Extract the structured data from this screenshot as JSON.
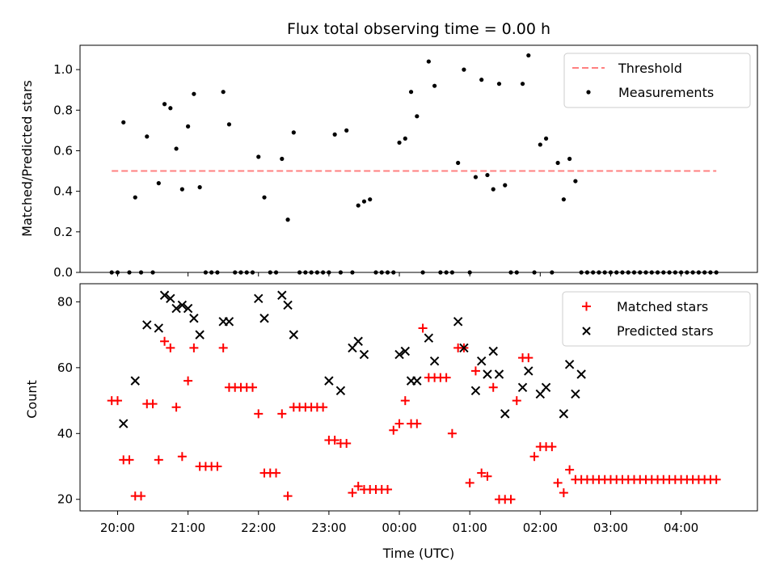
{
  "chart_data": [
    {
      "type": "scatter",
      "title": "Flux total observing time = 0.00 h",
      "xlabel": "",
      "ylabel": "Matched/Predicted stars",
      "ylim": [
        0,
        1.12
      ],
      "xlim": [
        "19:28",
        "05:05"
      ],
      "yticks": [
        "0.0",
        "0.2",
        "0.4",
        "0.6",
        "0.8",
        "1.0"
      ],
      "grid": false,
      "legend": {
        "placement": "top-right",
        "entries": [
          "Threshold",
          "Measurements"
        ]
      },
      "threshold": {
        "name": "Threshold",
        "y": 0.5,
        "x_start": "19:55",
        "x_end": "04:30",
        "color": "#ff8080",
        "style": "dashed"
      },
      "series": [
        {
          "name": "Measurements",
          "color": "#000000",
          "marker": "dot",
          "x": [
            "19:55",
            "20:00",
            "20:05",
            "20:10",
            "20:15",
            "20:20",
            "20:25",
            "20:30",
            "20:35",
            "20:40",
            "20:45",
            "20:50",
            "20:55",
            "21:00",
            "21:05",
            "21:10",
            "21:15",
            "21:20",
            "21:25",
            "21:30",
            "21:35",
            "21:40",
            "21:45",
            "21:50",
            "21:55",
            "22:00",
            "22:05",
            "22:10",
            "22:15",
            "22:20",
            "22:25",
            "22:30",
            "22:35",
            "22:40",
            "22:45",
            "22:50",
            "22:55",
            "23:00",
            "23:05",
            "23:10",
            "23:15",
            "23:20",
            "23:25",
            "23:30",
            "23:35",
            "23:40",
            "23:45",
            "23:50",
            "23:55",
            "00:00",
            "00:05",
            "00:10",
            "00:15",
            "00:20",
            "00:25",
            "00:30",
            "00:35",
            "00:40",
            "00:45",
            "00:50",
            "00:55",
            "01:00",
            "01:05",
            "01:10",
            "01:15",
            "01:20",
            "01:25",
            "01:30",
            "01:35",
            "01:40",
            "01:45",
            "01:50",
            "01:55",
            "02:00",
            "02:05",
            "02:10",
            "02:15",
            "02:20",
            "02:25",
            "02:30",
            "02:35",
            "02:40",
            "02:45",
            "02:50",
            "02:55",
            "03:00",
            "03:05",
            "03:10",
            "03:15",
            "03:20",
            "03:25",
            "03:30",
            "03:35",
            "03:40",
            "03:45",
            "03:50",
            "03:55",
            "04:00",
            "04:05",
            "04:10",
            "04:15",
            "04:20",
            "04:25",
            "04:30"
          ],
          "y": [
            0,
            0,
            0.74,
            0,
            0.37,
            0,
            0.67,
            0,
            0.44,
            0.83,
            0.81,
            0.61,
            0.41,
            0.72,
            0.88,
            0.42,
            0,
            0,
            0,
            0.89,
            0.73,
            0,
            0,
            0,
            0,
            0.57,
            0.37,
            0,
            0,
            0.56,
            0.26,
            0.69,
            0,
            0,
            0,
            0,
            0,
            0,
            0.68,
            0,
            0.7,
            0,
            0.33,
            0.35,
            0.36,
            0,
            0,
            0,
            0,
            0.64,
            0.66,
            0.89,
            0.77,
            0,
            1.04,
            0.92,
            0,
            0,
            0,
            0.54,
            1.0,
            0,
            0.47,
            0.95,
            0.48,
            0.41,
            0.93,
            0.43,
            0,
            0,
            0.93,
            1.07,
            0,
            0.63,
            0.66,
            0,
            0.54,
            0.36,
            0.56,
            0.45,
            0,
            0,
            0,
            0,
            0,
            0,
            0,
            0,
            0,
            0,
            0,
            0,
            0,
            0,
            0,
            0,
            0,
            0,
            0,
            0,
            0,
            0,
            0,
            0
          ]
        }
      ]
    },
    {
      "type": "scatter",
      "title": "",
      "xlabel": "Time (UTC)",
      "ylabel": "Count",
      "ylim": [
        16.5,
        85.5
      ],
      "xlim": [
        "19:28",
        "05:05"
      ],
      "yticks": [
        "20",
        "40",
        "60",
        "80"
      ],
      "xticks": [
        "20:00",
        "21:00",
        "22:00",
        "23:00",
        "00:00",
        "01:00",
        "02:00",
        "03:00",
        "04:00"
      ],
      "grid": false,
      "legend": {
        "placement": "top-right",
        "entries": [
          "Matched stars",
          "Predicted stars"
        ]
      },
      "series": [
        {
          "name": "Matched stars",
          "color": "#ff0000",
          "marker": "plus",
          "x": [
            "19:55",
            "20:00",
            "20:05",
            "20:10",
            "20:15",
            "20:20",
            "20:25",
            "20:30",
            "20:35",
            "20:40",
            "20:45",
            "20:50",
            "20:55",
            "21:00",
            "21:05",
            "21:10",
            "21:15",
            "21:20",
            "21:25",
            "21:30",
            "21:35",
            "21:40",
            "21:45",
            "21:50",
            "21:55",
            "22:00",
            "22:05",
            "22:10",
            "22:15",
            "22:20",
            "22:25",
            "22:30",
            "22:35",
            "22:40",
            "22:45",
            "22:50",
            "22:55",
            "23:00",
            "23:05",
            "23:10",
            "23:15",
            "23:20",
            "23:25",
            "23:30",
            "23:35",
            "23:40",
            "23:45",
            "23:50",
            "23:55",
            "00:00",
            "00:05",
            "00:10",
            "00:15",
            "00:20",
            "00:25",
            "00:30",
            "00:35",
            "00:40",
            "00:45",
            "00:50",
            "00:55",
            "01:00",
            "01:05",
            "01:10",
            "01:15",
            "01:20",
            "01:25",
            "01:30",
            "01:35",
            "01:40",
            "01:45",
            "01:50",
            "01:55",
            "02:00",
            "02:05",
            "02:10",
            "02:15",
            "02:20",
            "02:25",
            "02:30",
            "02:35",
            "02:40",
            "02:45",
            "02:50",
            "02:55",
            "03:00",
            "03:05",
            "03:10",
            "03:15",
            "03:20",
            "03:25",
            "03:30",
            "03:35",
            "03:40",
            "03:45",
            "03:50",
            "03:55",
            "04:00",
            "04:05",
            "04:10",
            "04:15",
            "04:20",
            "04:25",
            "04:30"
          ],
          "y": [
            50,
            50,
            32,
            32,
            21,
            21,
            49,
            49,
            32,
            68,
            66,
            48,
            33,
            56,
            66,
            30,
            30,
            30,
            30,
            66,
            54,
            54,
            54,
            54,
            54,
            46,
            28,
            28,
            28,
            46,
            21,
            48,
            48,
            48,
            48,
            48,
            48,
            38,
            38,
            37,
            37,
            22,
            24,
            23,
            23,
            23,
            23,
            23,
            41,
            43,
            50,
            43,
            43,
            72,
            57,
            57,
            57,
            57,
            40,
            66,
            66,
            25,
            59,
            28,
            27,
            54,
            20,
            20,
            20,
            50,
            63,
            63,
            33,
            36,
            36,
            36,
            25,
            22,
            29,
            26,
            26,
            26,
            26,
            26,
            26,
            26,
            26,
            26,
            26,
            26,
            26,
            26,
            26,
            26,
            26,
            26,
            26,
            26,
            26,
            26,
            26,
            26,
            26,
            26
          ]
        },
        {
          "name": "Predicted stars",
          "color": "#000000",
          "marker": "x",
          "x": [
            "20:05",
            "20:15",
            "20:25",
            "20:35",
            "20:40",
            "20:45",
            "20:50",
            "20:55",
            "21:00",
            "21:05",
            "21:10",
            "21:30",
            "21:35",
            "22:00",
            "22:05",
            "22:20",
            "22:25",
            "22:30",
            "23:00",
            "23:10",
            "23:20",
            "23:25",
            "23:30",
            "00:00",
            "00:05",
            "00:10",
            "00:15",
            "00:25",
            "00:30",
            "00:50",
            "00:55",
            "01:05",
            "01:10",
            "01:15",
            "01:20",
            "01:25",
            "01:30",
            "01:45",
            "01:50",
            "02:00",
            "02:05",
            "02:20",
            "02:25",
            "02:30",
            "02:35"
          ],
          "y": [
            43,
            56,
            73,
            72,
            82,
            81,
            78,
            79,
            78,
            75,
            70,
            74,
            74,
            81,
            75,
            82,
            79,
            70,
            56,
            53,
            66,
            68,
            64,
            64,
            65,
            56,
            56,
            69,
            62,
            74,
            66,
            53,
            62,
            58,
            65,
            58,
            46,
            54,
            59,
            52,
            54,
            46,
            61,
            52,
            58
          ]
        }
      ]
    }
  ]
}
